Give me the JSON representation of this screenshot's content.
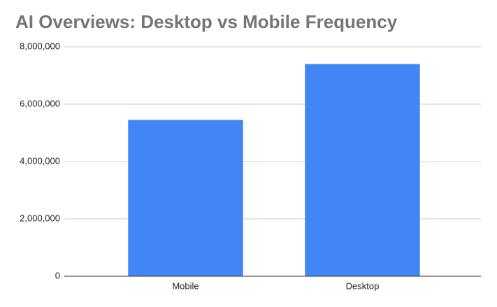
{
  "chart_data": {
    "type": "bar",
    "title": "AI Overviews: Desktop vs Mobile Frequency",
    "categories": [
      "Mobile",
      "Desktop"
    ],
    "values": [
      5450000,
      7400000
    ],
    "color": "#4285f4",
    "ylim": [
      0,
      8000000
    ],
    "yticks": [
      0,
      {
        "value": 2000000,
        "label": "2,000,000"
      },
      {
        "value": 4000000,
        "label": "4,000,000"
      },
      {
        "value": 6000000,
        "label": "6,000,000"
      },
      {
        "value": 8000000,
        "label": "8,000,000"
      }
    ],
    "grid": true
  }
}
